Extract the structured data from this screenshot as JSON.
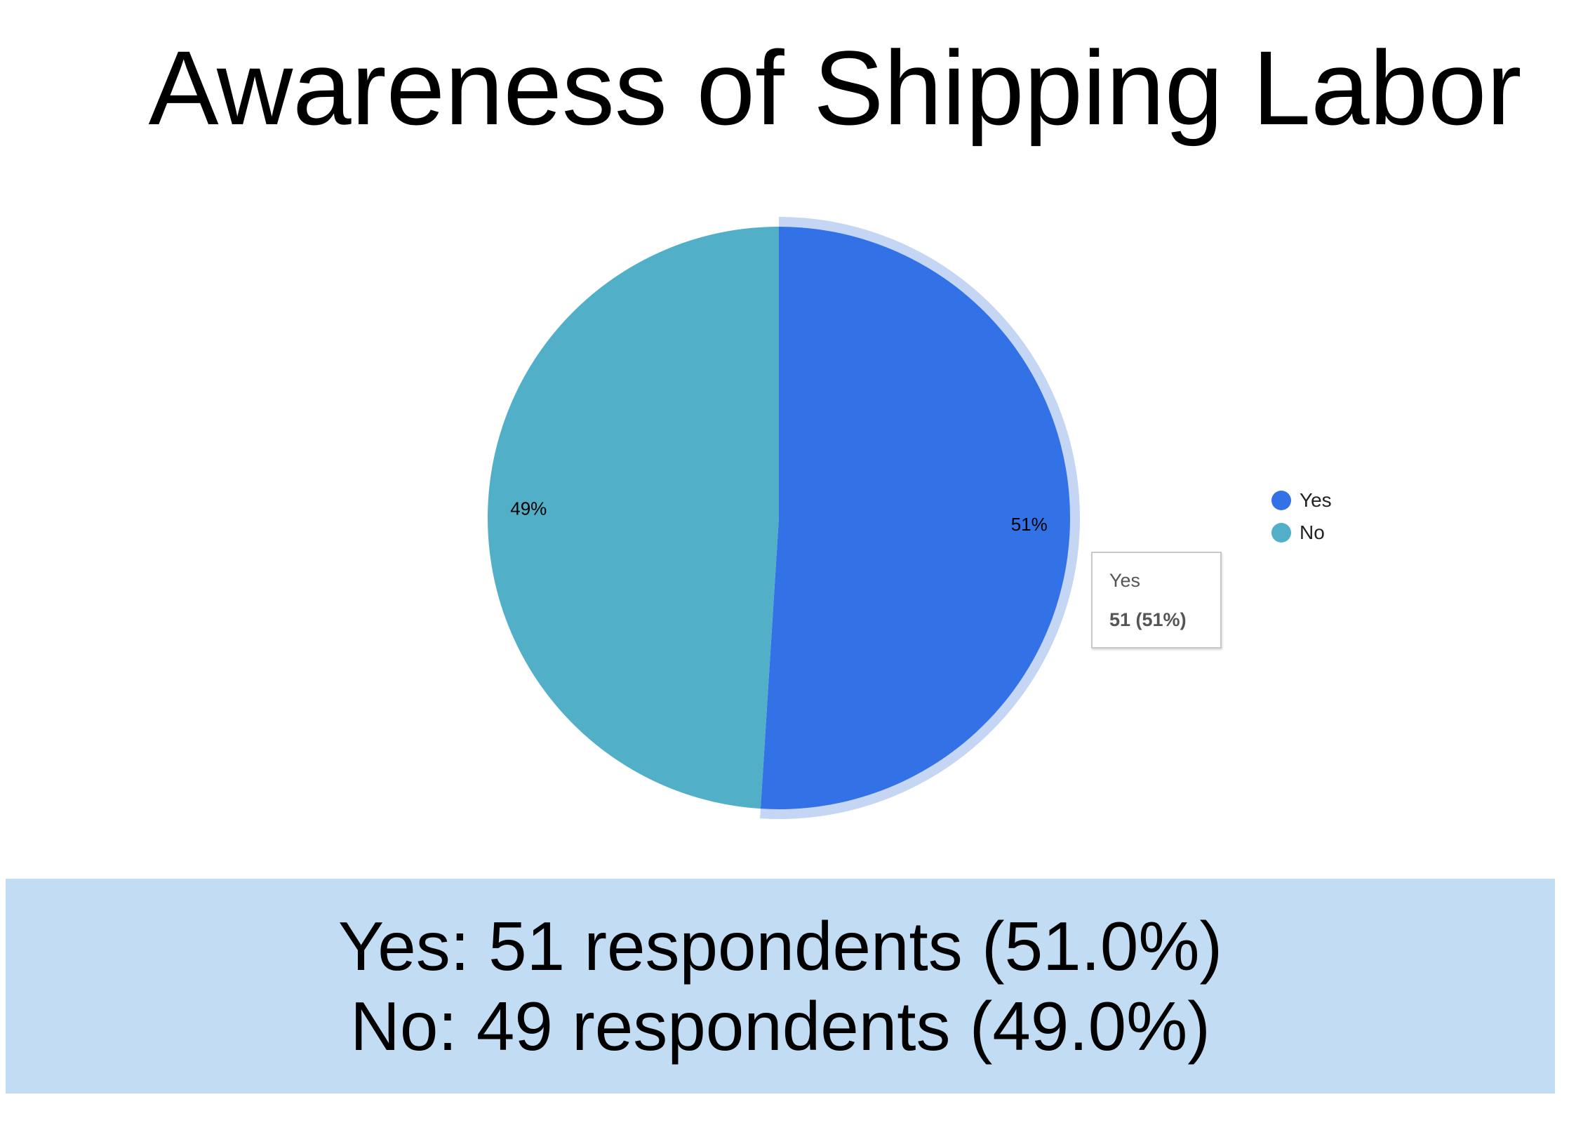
{
  "chart_data": {
    "type": "pie",
    "title": "Awareness of Shipping Labor",
    "categories": [
      "Yes",
      "No"
    ],
    "values": [
      51,
      49
    ],
    "percent_labels": [
      "51%",
      "49%"
    ],
    "colors": [
      "#3372e6",
      "#51b0c8"
    ],
    "highlight_color": "#c4d6f4",
    "highlighted_slice": "Yes",
    "legend_position": "right",
    "tooltip": {
      "name": "Yes",
      "value": "51 (51%)"
    }
  },
  "legend": {
    "items": [
      {
        "label": "Yes",
        "color": "#3372e6"
      },
      {
        "label": "No",
        "color": "#51b0c8"
      }
    ]
  },
  "summary": {
    "lines": [
      "Yes: 51 respondents (51.0%)",
      "No: 49 respondents (49.0%)"
    ],
    "background": "#c2dcf4"
  }
}
